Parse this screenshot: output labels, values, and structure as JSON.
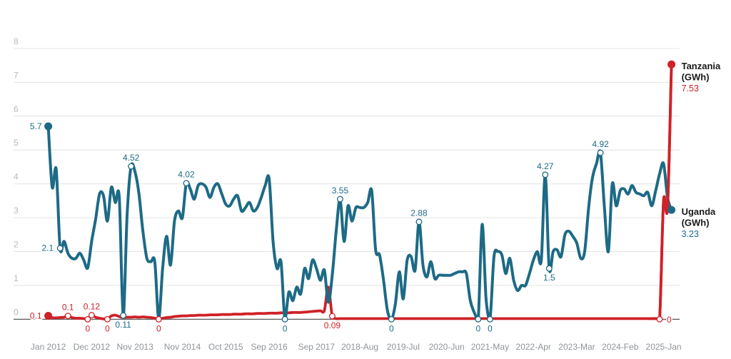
{
  "chart_data": {
    "type": "line",
    "title": "",
    "unit": "GWh",
    "ylim": [
      0,
      8
    ],
    "y_ticks": [
      0,
      1,
      2,
      3,
      4,
      5,
      6,
      7,
      8
    ],
    "grid": true,
    "legend_position": "end-of-line",
    "x_ticks": [
      {
        "label": "Jan 2012",
        "month": 0
      },
      {
        "label": "Dec 2012",
        "month": 11
      },
      {
        "label": "Nov 2013",
        "month": 22
      },
      {
        "label": "Nov 2014",
        "month": 34
      },
      {
        "label": "Oct 2015",
        "month": 45
      },
      {
        "label": "Sep 2016",
        "month": 56
      },
      {
        "label": "Sep 2017",
        "month": 68
      },
      {
        "label": "2018-Aug",
        "month": 79
      },
      {
        "label": "2019-Jul",
        "month": 90
      },
      {
        "label": "2020-Jun",
        "month": 101
      },
      {
        "label": "2021-May",
        "month": 112
      },
      {
        "label": "2022-Apr",
        "month": 123
      },
      {
        "label": "2023-Mar",
        "month": 134
      },
      {
        "label": "2024-Feb",
        "month": 145
      },
      {
        "label": "2025-Jan",
        "month": 156
      }
    ],
    "n_points": 159,
    "series": [
      {
        "name": "Tanzania (GWh)",
        "color": "#cf2127",
        "end_value": "7.53",
        "values": [
          0.1,
          0.05,
          0.04,
          0.05,
          0.06,
          0.1,
          0.05,
          0.03,
          0.03,
          0.02,
          0,
          0.12,
          0.06,
          0.03,
          0.01,
          0,
          0.1,
          0.12,
          0.08,
          0.05,
          0.06,
          0.06,
          0.07,
          0.06,
          0.07,
          0.06,
          0.05,
          0.03,
          0,
          0.03,
          0.05,
          0.06,
          0.08,
          0.09,
          0.1,
          0.1,
          0.11,
          0.11,
          0.12,
          0.12,
          0.12,
          0.13,
          0.13,
          0.13,
          0.14,
          0.14,
          0.14,
          0.15,
          0.15,
          0.15,
          0.16,
          0.16,
          0.16,
          0.17,
          0.17,
          0.17,
          0.18,
          0.18,
          0.18,
          0.19,
          0.19,
          0.19,
          0.2,
          0.2,
          0.2,
          0.21,
          0.22,
          0.23,
          0.24,
          0.25,
          0.26,
          0.95,
          0.09,
          0.02,
          0.02,
          0.02,
          0.02,
          0.02,
          0.02,
          0.02,
          0.02,
          0.02,
          0.02,
          0.02,
          0.02,
          0.02,
          0.02,
          0.02,
          0.02,
          0.02,
          0.02,
          0.02,
          0.02,
          0.02,
          0.02,
          0.02,
          0.02,
          0.02,
          0.02,
          0.02,
          0.02,
          0.02,
          0.02,
          0.02,
          0.02,
          0.02,
          0.02,
          0.02,
          0.02,
          0.02,
          0.02,
          0.02,
          0.02,
          0.02,
          0.02,
          0.02,
          0.02,
          0.02,
          0.02,
          0.02,
          0.02,
          0.02,
          0.02,
          0.02,
          0.02,
          0.02,
          0.02,
          0.02,
          0.02,
          0.02,
          0.02,
          0.02,
          0.02,
          0.02,
          0.02,
          0.02,
          0.02,
          0.02,
          0.02,
          0.02,
          0.02,
          0.02,
          0.02,
          0.02,
          0.02,
          0.02,
          0.02,
          0.02,
          0.02,
          0.02,
          0.02,
          0.02,
          0.02,
          0.02,
          0.02,
          0,
          3.5,
          3.3,
          7.53
        ]
      },
      {
        "name": "Uganda (GWh)",
        "color": "#1d6a86",
        "end_value": "3.23",
        "values": [
          5.7,
          3.9,
          4.43,
          2.1,
          2.3,
          1.95,
          1.8,
          1.8,
          1.95,
          1.75,
          1.52,
          2.3,
          2.95,
          3.7,
          3.65,
          2.9,
          3.9,
          3.45,
          3.6,
          0.11,
          3.1,
          4.52,
          4.35,
          3.7,
          2.6,
          1.8,
          1.7,
          1.7,
          0.02,
          1.5,
          2.45,
          1.6,
          2.9,
          3.2,
          3.0,
          4.02,
          3.85,
          3.55,
          3.95,
          4.0,
          3.9,
          3.6,
          3.9,
          4.0,
          3.7,
          3.4,
          3.35,
          3.55,
          3.65,
          3.2,
          3.3,
          3.45,
          3.2,
          3.3,
          3.6,
          3.95,
          4.15,
          2.3,
          1.5,
          1.7,
          0,
          0.8,
          0.55,
          0.95,
          0.75,
          1.5,
          1.2,
          1.75,
          1.5,
          1.15,
          1.45,
          0.5,
          1.3,
          2.6,
          3.55,
          2.3,
          3.35,
          2.9,
          3.3,
          3.3,
          3.3,
          3.45,
          3.8,
          2.05,
          1.9,
          1.15,
          0.25,
          0,
          0.45,
          1.4,
          0.6,
          1.75,
          1.85,
          1.45,
          2.88,
          1.6,
          1.25,
          1.7,
          1.2,
          1.3,
          1.3,
          1.3,
          1.3,
          1.35,
          1.4,
          1.4,
          1.35,
          0.55,
          0.2,
          0,
          2.8,
          0.6,
          0,
          1.85,
          2.0,
          1.9,
          1.35,
          1.8,
          1.15,
          0.85,
          1.0,
          1.0,
          1.35,
          1.75,
          2.0,
          1.75,
          4.27,
          1.5,
          2.0,
          2.05,
          1.85,
          2.5,
          2.6,
          2.45,
          2.25,
          1.8,
          2.0,
          3.3,
          4.2,
          4.6,
          4.92,
          3.3,
          2.0,
          4.0,
          3.35,
          3.8,
          3.85,
          3.7,
          3.95,
          3.75,
          3.7,
          3.65,
          3.75,
          3.35,
          3.8,
          4.3,
          4.6,
          3.6,
          3.23
        ]
      }
    ],
    "annotations": [
      {
        "series": 0,
        "index": 0,
        "label": "0.1",
        "placement": "left",
        "marker": "dot"
      },
      {
        "series": 0,
        "index": 5,
        "label": "0.1",
        "placement": "above",
        "marker": "open"
      },
      {
        "series": 0,
        "index": 10,
        "label": "0",
        "placement": "below",
        "marker": "open"
      },
      {
        "series": 0,
        "index": 11,
        "label": "0.12",
        "placement": "above",
        "marker": "open"
      },
      {
        "series": 0,
        "index": 15,
        "label": "0",
        "placement": "below",
        "marker": "open"
      },
      {
        "series": 0,
        "index": 28,
        "label": "0",
        "placement": "below",
        "marker": "open"
      },
      {
        "series": 0,
        "index": 72,
        "label": "0.09",
        "placement": "below",
        "marker": "open"
      },
      {
        "series": 0,
        "index": 155,
        "label": "0",
        "placement": "right",
        "marker": "open"
      },
      {
        "series": 1,
        "index": 0,
        "label": "5.7",
        "placement": "left",
        "marker": "dot"
      },
      {
        "series": 1,
        "index": 3,
        "label": "2.1",
        "placement": "left",
        "marker": "open"
      },
      {
        "series": 1,
        "index": 19,
        "label": "0.11",
        "placement": "below",
        "marker": "open"
      },
      {
        "series": 1,
        "index": 21,
        "label": "4.52",
        "placement": "above",
        "marker": "open"
      },
      {
        "series": 1,
        "index": 35,
        "label": "4.02",
        "placement": "above",
        "marker": "open"
      },
      {
        "series": 1,
        "index": 60,
        "label": "0",
        "placement": "below",
        "marker": "open"
      },
      {
        "series": 1,
        "index": 74,
        "label": "3.55",
        "placement": "above",
        "marker": "open"
      },
      {
        "series": 1,
        "index": 87,
        "label": "0",
        "placement": "below",
        "marker": "open"
      },
      {
        "series": 1,
        "index": 94,
        "label": "2.88",
        "placement": "above",
        "marker": "open"
      },
      {
        "series": 1,
        "index": 109,
        "label": "0",
        "placement": "below",
        "marker": "open"
      },
      {
        "series": 1,
        "index": 112,
        "label": "0",
        "placement": "below",
        "marker": "open"
      },
      {
        "series": 1,
        "index": 126,
        "label": "4.27",
        "placement": "above",
        "marker": "open"
      },
      {
        "series": 1,
        "index": 127,
        "label": "1.5",
        "placement": "below",
        "marker": "open"
      },
      {
        "series": 1,
        "index": 140,
        "label": "4.92",
        "placement": "above",
        "marker": "open"
      }
    ],
    "end_labels": [
      {
        "series": 0,
        "name_lines": [
          "Tanzania",
          "(GWh)"
        ],
        "value": "7.53"
      },
      {
        "series": 1,
        "name_lines": [
          "Uganda",
          "(GWh)"
        ],
        "value": "3.23"
      }
    ],
    "colors": {
      "tanzania": "#cf2127",
      "uganda": "#1d6a86",
      "grid": "#e4e4e4",
      "axis": "#444444",
      "y_tick_text": "#b4b9be",
      "x_tick_text": "#8f9499",
      "end_label_name": "#1a1a1a",
      "background": "#ffffff"
    }
  }
}
